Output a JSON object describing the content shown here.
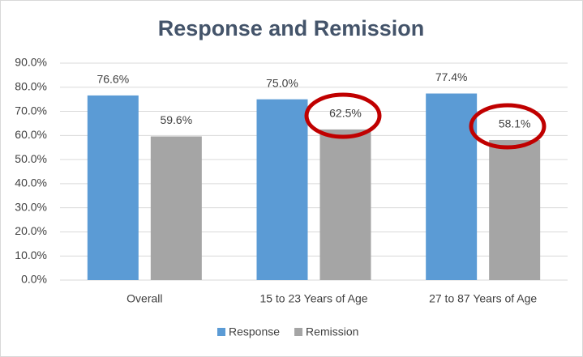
{
  "chart_data": {
    "type": "bar",
    "title": "Response and Remission",
    "categories": [
      "Overall",
      "15 to 23 Years of Age",
      "27 to 87 Years of Age"
    ],
    "series": [
      {
        "name": "Response",
        "color": "#5b9bd5",
        "values": [
          76.6,
          75.0,
          77.4
        ],
        "value_labels": [
          "76.6%",
          "75.0%",
          "77.4%"
        ]
      },
      {
        "name": "Remission",
        "color": "#a5a5a5",
        "values": [
          59.6,
          62.5,
          58.1
        ],
        "value_labels": [
          "59.6%",
          "62.5%",
          "58.1%"
        ]
      }
    ],
    "ylim": [
      0,
      90
    ],
    "yticks": [
      {
        "value": 0,
        "label": "0.0%"
      },
      {
        "value": 10,
        "label": "10.0%"
      },
      {
        "value": 20,
        "label": "20.0%"
      },
      {
        "value": 30,
        "label": "30.0%"
      },
      {
        "value": 40,
        "label": "40.0%"
      },
      {
        "value": 50,
        "label": "50.0%"
      },
      {
        "value": 60,
        "label": "60.0%"
      },
      {
        "value": 70,
        "label": "70.0%"
      },
      {
        "value": 80,
        "label": "80.0%"
      },
      {
        "value": 90,
        "label": "90.0%"
      }
    ],
    "grid": true,
    "legend": "bottom"
  }
}
